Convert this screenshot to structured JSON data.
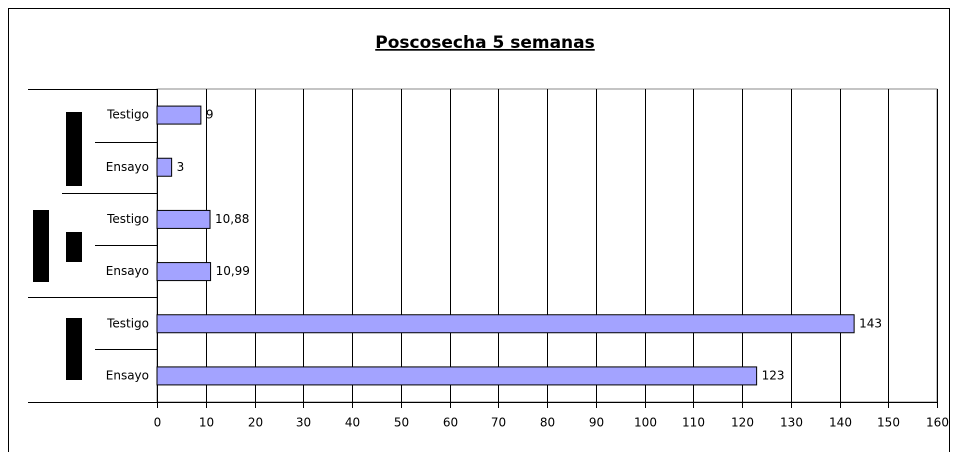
{
  "chart_data": {
    "type": "barh",
    "title": "Poscosecha 5 semanas",
    "categories": [
      "Testigo",
      "Ensayo",
      "Testigo",
      "Ensayo",
      "Testigo",
      "Ensayo"
    ],
    "values": [
      9,
      3,
      10.88,
      10.99,
      143,
      123
    ],
    "value_labels": [
      "9",
      "3",
      "10,88",
      "10,99",
      "143",
      "123"
    ],
    "color": "#a3a3ff",
    "xlim": [
      0,
      160
    ],
    "xticks": [
      0,
      10,
      20,
      30,
      40,
      50,
      60,
      70,
      80,
      90,
      100,
      110,
      120,
      130,
      140,
      150,
      160
    ],
    "grid": true
  }
}
